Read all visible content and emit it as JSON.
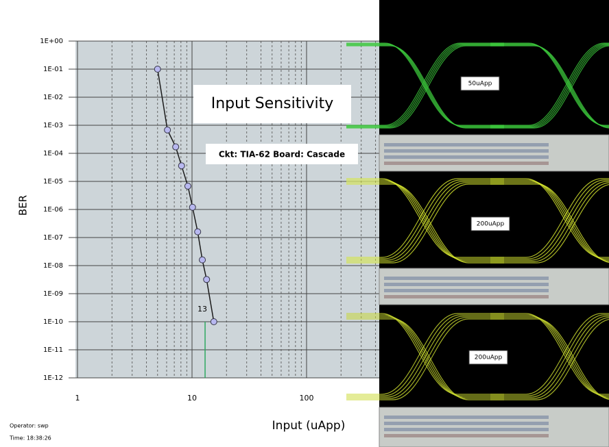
{
  "chart_data": {
    "type": "line",
    "title": "Input Sensitivity",
    "subtitle": "Ckt: TIA-62  Board: Cascade",
    "xlabel": "Input (uApp)",
    "ylabel": "BER",
    "x": [
      5.0,
      6.1,
      7.2,
      8.1,
      9.2,
      10.1,
      11.2,
      12.3,
      13.4,
      15.5
    ],
    "values": [
      0.1,
      0.00068,
      0.00017,
      3.6e-05,
      6.8e-06,
      1.2e-06,
      1.6e-07,
      1.6e-08,
      3.2e-09,
      1e-10
    ],
    "color": "#1a1a1a",
    "marker_color": "#b8b8f0",
    "marker_x": 13,
    "marker_color_line": "#2ea860",
    "xlog": true,
    "ylog": true,
    "grid": true,
    "xlim": [
      1,
      1000
    ],
    "ylim": [
      1e-12,
      1
    ],
    "xticks": [
      1,
      10,
      100
    ],
    "yticks": [
      {
        "value": 1,
        "label": "1E+00"
      },
      {
        "value": 0.1,
        "label": "1E-01"
      },
      {
        "value": 0.01,
        "label": "1E-02"
      },
      {
        "value": 0.001,
        "label": "1E-03"
      },
      {
        "value": 0.0001,
        "label": "1E-04"
      },
      {
        "value": 1e-05,
        "label": "1E-05"
      },
      {
        "value": 1e-06,
        "label": "1E-06"
      },
      {
        "value": 1e-07,
        "label": "1E-07"
      },
      {
        "value": 1e-08,
        "label": "1E-08"
      },
      {
        "value": 1e-09,
        "label": "1E-09"
      },
      {
        "value": 1e-10,
        "label": "1E-10"
      },
      {
        "value": 1e-11,
        "label": "1E-11"
      },
      {
        "value": 1e-12,
        "label": "1E-12"
      }
    ]
  },
  "footer": {
    "operator": "Operator: swp",
    "time": "Time: 18:38:26"
  },
  "eyes": [
    {
      "label": "50uApp",
      "color": "#3cc83c"
    },
    {
      "label": "200uApp",
      "color": "#d8e830"
    },
    {
      "label": "200uApp",
      "color": "#c8d830"
    }
  ]
}
